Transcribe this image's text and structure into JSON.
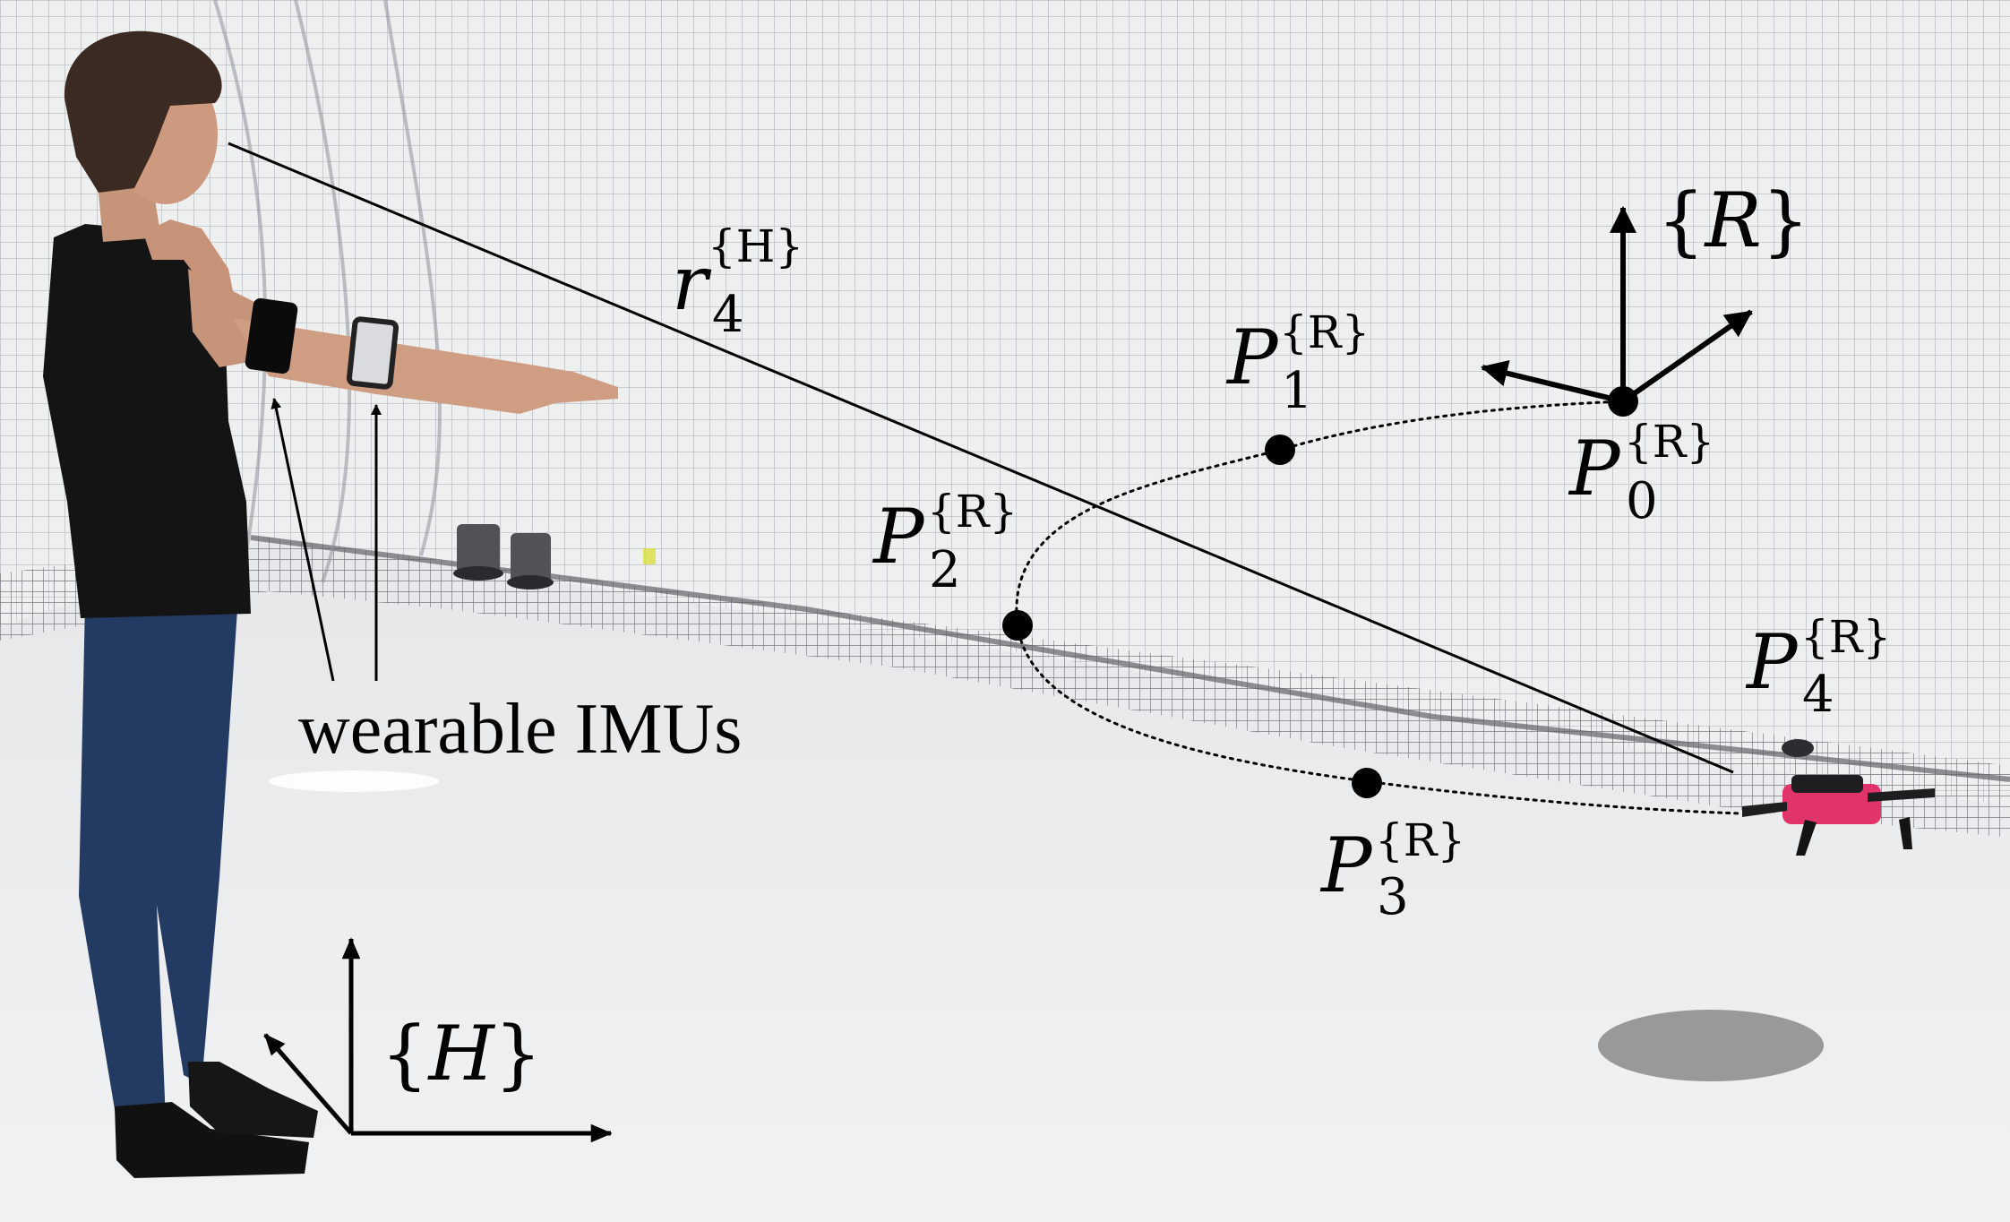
{
  "annotations": {
    "imu_label": "wearable IMUs",
    "human_frame": {
      "open": "{",
      "symbol": "H",
      "close": "}"
    },
    "robot_frame": {
      "open": "{",
      "symbol": "R",
      "close": "}"
    },
    "pointing_vector": {
      "symbol": "r",
      "subscript": "4",
      "superscript": "{H}"
    },
    "waypoints": [
      {
        "symbol": "P",
        "subscript": "0",
        "superscript": "{R}"
      },
      {
        "symbol": "P",
        "subscript": "1",
        "superscript": "{R}"
      },
      {
        "symbol": "P",
        "subscript": "2",
        "superscript": "{R}"
      },
      {
        "symbol": "P",
        "subscript": "3",
        "superscript": "{R}"
      },
      {
        "symbol": "P",
        "subscript": "4",
        "superscript": "{R}"
      }
    ]
  },
  "colors": {
    "background_wall": "#eceded",
    "floor": "#e8e9ea",
    "net_mesh": "#b9bcc3",
    "annotation_ink": "#000000",
    "landing_pad": "#999999",
    "drone_body": "#e0346b"
  }
}
